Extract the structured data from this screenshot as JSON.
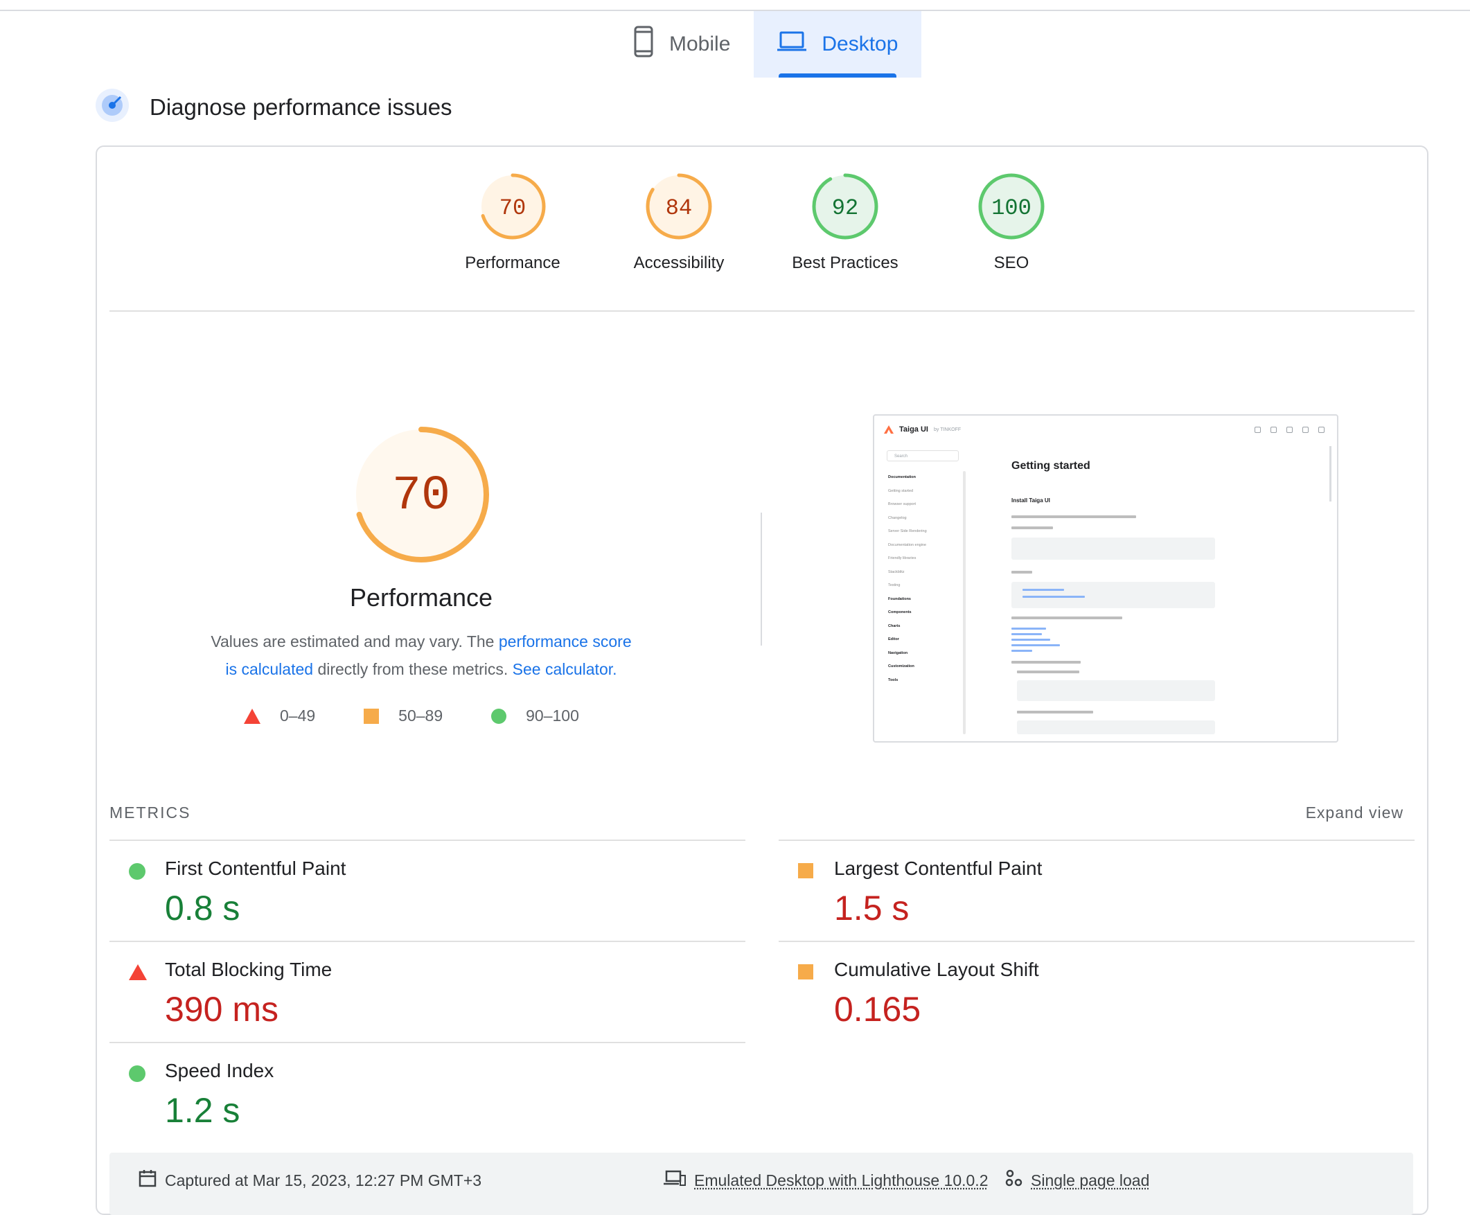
{
  "tabs": [
    {
      "label": "Mobile",
      "icon": "smartphone-icon",
      "active": false
    },
    {
      "label": "Desktop",
      "icon": "laptop-icon",
      "active": true
    }
  ],
  "section": {
    "title": "Diagnose performance issues",
    "icon": "lighthouse-icon"
  },
  "categories": [
    {
      "score": "70",
      "label": "Performance",
      "rating": "average"
    },
    {
      "score": "84",
      "label": "Accessibility",
      "rating": "average"
    },
    {
      "score": "92",
      "label": "Best Practices",
      "rating": "pass"
    },
    {
      "score": "100",
      "label": "SEO",
      "rating": "pass"
    }
  ],
  "summary": {
    "score": "70",
    "title": "Performance",
    "desc_prefix": "Values are estimated and may vary. The ",
    "desc_link1": "performance score is calculated",
    "desc_middle": " directly from these metrics. ",
    "desc_link2": "See calculator."
  },
  "legend": [
    {
      "shape": "triangle",
      "range": "0–49"
    },
    {
      "shape": "square",
      "range": "50–89"
    },
    {
      "shape": "circle",
      "range": "90–100"
    }
  ],
  "thumbnail": {
    "brand": "Taiga UI",
    "brand_by": "by TINKOFF",
    "search": "Search",
    "heading": "Getting started",
    "subheading": "Install Taiga UI",
    "sidebar": [
      {
        "t": "Documentation",
        "b": true
      },
      {
        "t": "Getting started",
        "b": false
      },
      {
        "t": "Browser support",
        "b": false
      },
      {
        "t": "Changelog",
        "b": false
      },
      {
        "t": "Server Side Rendering",
        "b": false
      },
      {
        "t": "Documentation engine",
        "b": false
      },
      {
        "t": "Friendly libraries",
        "b": false
      },
      {
        "t": "Stackblitz",
        "b": false
      },
      {
        "t": "Testing",
        "b": false
      },
      {
        "t": "Foundations",
        "b": true
      },
      {
        "t": "Components",
        "b": true
      },
      {
        "t": "Charts",
        "b": true
      },
      {
        "t": "Editor",
        "b": true
      },
      {
        "t": "Navigation",
        "b": true
      },
      {
        "t": "Customization",
        "b": true
      },
      {
        "t": "Tools",
        "b": true
      }
    ]
  },
  "metrics_header": {
    "label": "METRICS",
    "expand": "Expand view"
  },
  "metrics": [
    {
      "name": "First Contentful Paint",
      "value": "0.8 s",
      "rating": "pass"
    },
    {
      "name": "Largest Contentful Paint",
      "value": "1.5 s",
      "rating": "average"
    },
    {
      "name": "Total Blocking Time",
      "value": "390 ms",
      "rating": "fail"
    },
    {
      "name": "Cumulative Layout Shift",
      "value": "0.165",
      "rating": "average"
    },
    {
      "name": "Speed Index",
      "value": "1.2 s",
      "rating": "pass"
    }
  ],
  "footer": {
    "captured": "Captured at Mar 15, 2023, 12:27 PM GMT+3",
    "emulated": "Emulated Desktop with Lighthouse 10.0.2",
    "load": "Single page load"
  },
  "colors": {
    "pass": "#0cce6b",
    "average": "#ffa400",
    "fail": "#ff4e42",
    "accent": "#1a73e8"
  }
}
